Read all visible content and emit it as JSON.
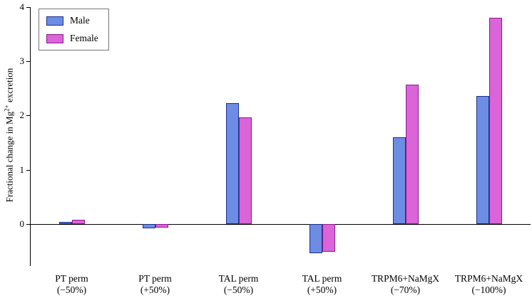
{
  "chart_data": {
    "type": "bar",
    "title": "",
    "ylabel_prefix": "Fractional change in Mg",
    "ylabel_sup": "2+",
    "ylabel_suffix": " excretion",
    "xlabel": "",
    "ylim": [
      -0.78,
      4
    ],
    "yticks": [
      0,
      1,
      2,
      3,
      4
    ],
    "grid": false,
    "legend_position": "upper left",
    "categories": [
      [
        "PT perm",
        "(−50%)"
      ],
      [
        "PT perm",
        "(+50%)"
      ],
      [
        "TAL perm",
        "(−50%)"
      ],
      [
        "TAL perm",
        "(+50%)"
      ],
      [
        "TRPM6+NaMgX",
        "(−70%)"
      ],
      [
        "TRPM6+NaMgX",
        "(−100%)"
      ]
    ],
    "series": [
      {
        "name": "Male",
        "fill": "#6d8de4",
        "edge": "#1c2e8c",
        "values": [
          0.03,
          -0.08,
          2.23,
          -0.55,
          1.6,
          2.36
        ]
      },
      {
        "name": "Female",
        "fill": "#da64d8",
        "edge": "#8c1c8c",
        "values": [
          0.07,
          -0.07,
          1.96,
          -0.52,
          2.57,
          3.8
        ]
      }
    ]
  }
}
